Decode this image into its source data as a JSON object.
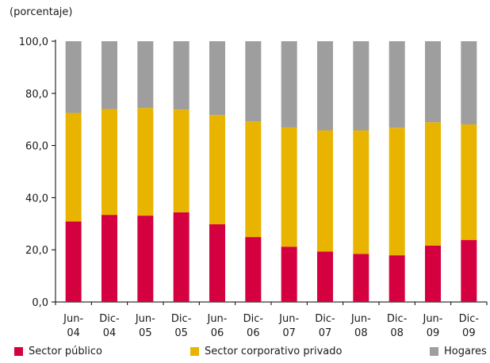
{
  "unit_label": "(porcentaje)",
  "chart_data": {
    "type": "bar",
    "stacked": true,
    "categories": [
      [
        "Jun-",
        "04"
      ],
      [
        "Dic-",
        "04"
      ],
      [
        "Jun-",
        "05"
      ],
      [
        "Dic-",
        "05"
      ],
      [
        "Jun-",
        "06"
      ],
      [
        "Dic-",
        "06"
      ],
      [
        "Jun-",
        "07"
      ],
      [
        "Dic-",
        "07"
      ],
      [
        "Jun-",
        "08"
      ],
      [
        "Dic-",
        "08"
      ],
      [
        "Jun-",
        "09"
      ],
      [
        "Dic-",
        "09"
      ]
    ],
    "series": [
      {
        "name": "Sector público",
        "color": "#d4003f",
        "values": [
          30.9,
          33.4,
          33.1,
          34.4,
          29.8,
          24.9,
          21.2,
          19.3,
          18.4,
          17.9,
          21.6,
          23.8
        ]
      },
      {
        "name": "Sector corporativo privado",
        "color": "#e8b400",
        "values": [
          41.6,
          40.6,
          41.3,
          39.4,
          41.9,
          44.3,
          45.7,
          46.5,
          47.4,
          48.9,
          47.3,
          44.3
        ]
      },
      {
        "name": "Hogares",
        "color": "#9e9e9e",
        "values": [
          27.5,
          26.0,
          25.6,
          26.2,
          28.3,
          30.8,
          33.1,
          34.2,
          34.2,
          33.2,
          31.1,
          31.9
        ]
      }
    ],
    "ylim": [
      0,
      100
    ],
    "yticks": [
      "0,0",
      "20,0",
      "40,0",
      "60,0",
      "80,0",
      "100,0"
    ],
    "grid": false,
    "legend_position": "bottom"
  }
}
